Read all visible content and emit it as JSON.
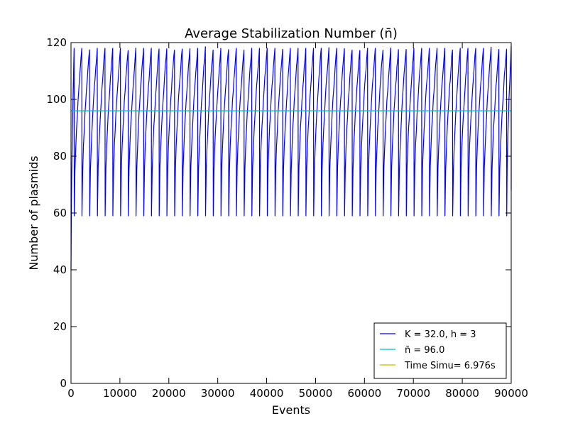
{
  "chart_data": {
    "type": "line",
    "title": "Average Stabilization Number (n̄)",
    "xlabel": "Events",
    "ylabel": "Number of plasmids",
    "xlim": [
      0,
      90000
    ],
    "ylim": [
      0,
      120
    ],
    "xticks": [
      0,
      10000,
      20000,
      30000,
      40000,
      50000,
      60000,
      70000,
      80000,
      90000
    ],
    "yticks": [
      0,
      20,
      40,
      60,
      80,
      100,
      120
    ],
    "grid": false,
    "legend_position": "lower-right",
    "series": [
      {
        "name": "K = 32.0, h = 3",
        "color": "#0000ff",
        "kind": "sawtooth",
        "start": [
          0,
          40
        ],
        "cycle_low": 59,
        "cycle_high": 118,
        "cycle_count": 57
      },
      {
        "name": "n̄ = 96.0",
        "color": "#00bfbf",
        "kind": "constant",
        "y": 96.0
      },
      {
        "name": "Time Simu= 6.976s",
        "color": "#bfbf00",
        "kind": "legend-only"
      }
    ]
  }
}
